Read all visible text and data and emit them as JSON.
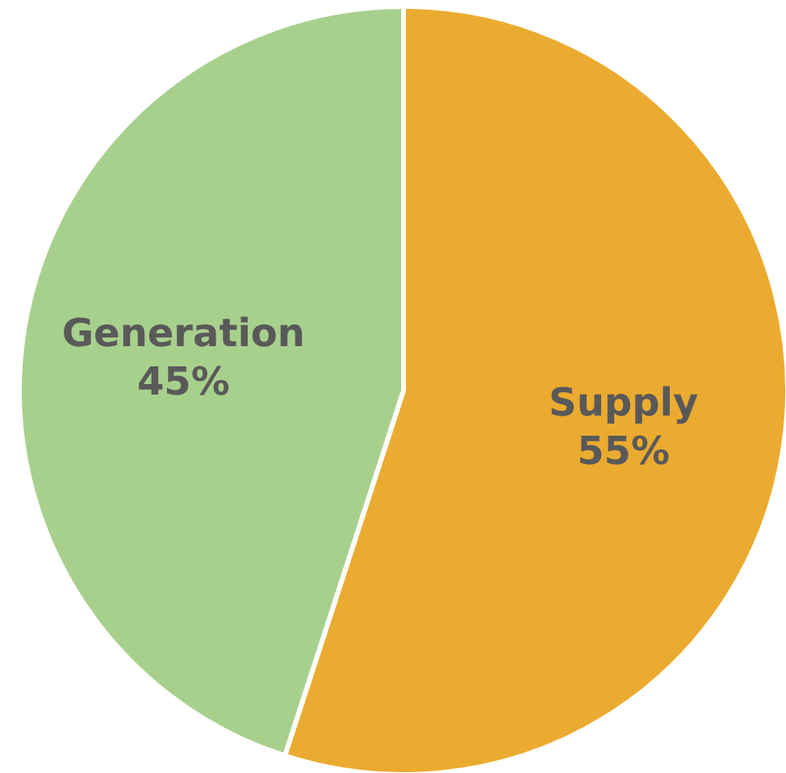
{
  "chart_data": {
    "type": "pie",
    "categories": [
      "Supply",
      "Generation"
    ],
    "values": [
      55,
      45
    ],
    "colors": [
      "#ebab30",
      "#a8d08d"
    ],
    "value_labels": [
      "55%",
      "45%"
    ]
  }
}
